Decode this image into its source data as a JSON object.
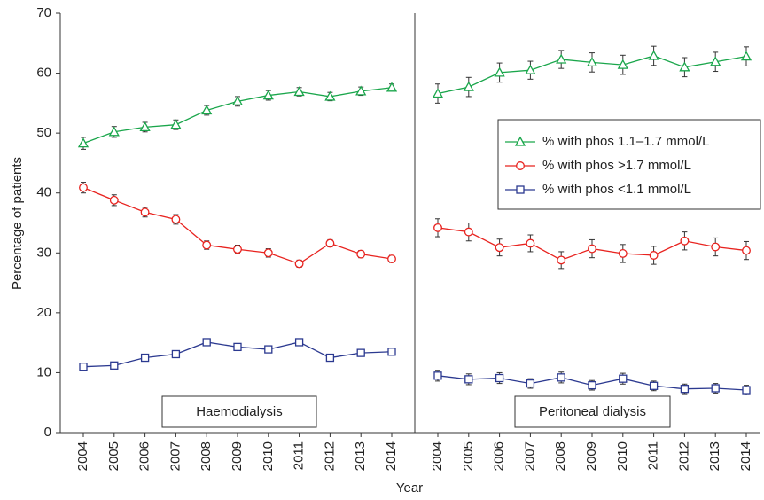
{
  "chart_data": {
    "type": "line",
    "x_label": "Year",
    "y_label": "Percentage of patients",
    "ylim": [
      0,
      70
    ],
    "yticks": [
      0,
      10,
      20,
      30,
      40,
      50,
      60,
      70
    ],
    "legend": "upper right",
    "series": [
      {
        "name": "% with phos 1.1–1.7 mmol/L",
        "color": "#1aa64b",
        "marker": "triangle"
      },
      {
        "name": "% with phos >1.7 mmol/L",
        "color": "#e8231f",
        "marker": "circle"
      },
      {
        "name": "% with phos <1.1 mmol/L",
        "color": "#2b3990",
        "marker": "square"
      }
    ],
    "panels": [
      {
        "label": "Haemodialysis",
        "categories": [
          "2004",
          "2005",
          "2006",
          "2007",
          "2008",
          "2009",
          "2010",
          "2011",
          "2012",
          "2013",
          "2014"
        ],
        "values": [
          [
            48.3,
            50.2,
            51.0,
            51.4,
            53.8,
            55.3,
            56.3,
            56.9,
            56.1,
            57.0,
            57.6
          ],
          [
            40.9,
            38.8,
            36.8,
            35.6,
            31.3,
            30.6,
            30.0,
            28.2,
            31.6,
            29.8,
            29.0
          ],
          [
            11.0,
            11.2,
            12.5,
            13.1,
            15.1,
            14.3,
            13.9,
            15.1,
            12.5,
            13.3,
            13.5
          ]
        ],
        "errors": [
          [
            1.0,
            0.9,
            0.8,
            0.8,
            0.8,
            0.8,
            0.8,
            0.7,
            0.7,
            0.7,
            0.6
          ],
          [
            0.9,
            0.9,
            0.8,
            0.8,
            0.7,
            0.7,
            0.7,
            0.6,
            0.6,
            0.6,
            0.6
          ],
          [
            0.5,
            0.5,
            0.5,
            0.5,
            0.5,
            0.5,
            0.5,
            0.5,
            0.4,
            0.4,
            0.4
          ]
        ]
      },
      {
        "label": "Peritoneal dialysis",
        "categories": [
          "2004",
          "2005",
          "2006",
          "2007",
          "2008",
          "2009",
          "2010",
          "2011",
          "2012",
          "2013",
          "2014"
        ],
        "values": [
          [
            56.6,
            57.7,
            60.1,
            60.5,
            62.3,
            61.8,
            61.4,
            62.9,
            61.0,
            61.9,
            62.8
          ],
          [
            34.2,
            33.5,
            30.9,
            31.6,
            28.8,
            30.7,
            29.9,
            29.6,
            32.0,
            31.0,
            30.4
          ],
          [
            9.5,
            8.9,
            9.1,
            8.2,
            9.2,
            7.9,
            9.0,
            7.8,
            7.3,
            7.4,
            7.1
          ]
        ],
        "errors": [
          [
            1.6,
            1.6,
            1.6,
            1.5,
            1.5,
            1.6,
            1.6,
            1.6,
            1.6,
            1.6,
            1.6
          ],
          [
            1.5,
            1.5,
            1.4,
            1.4,
            1.4,
            1.5,
            1.5,
            1.5,
            1.5,
            1.5,
            1.5
          ],
          [
            0.9,
            0.9,
            0.9,
            0.8,
            0.9,
            0.8,
            0.9,
            0.8,
            0.8,
            0.8,
            0.8
          ]
        ]
      }
    ]
  }
}
